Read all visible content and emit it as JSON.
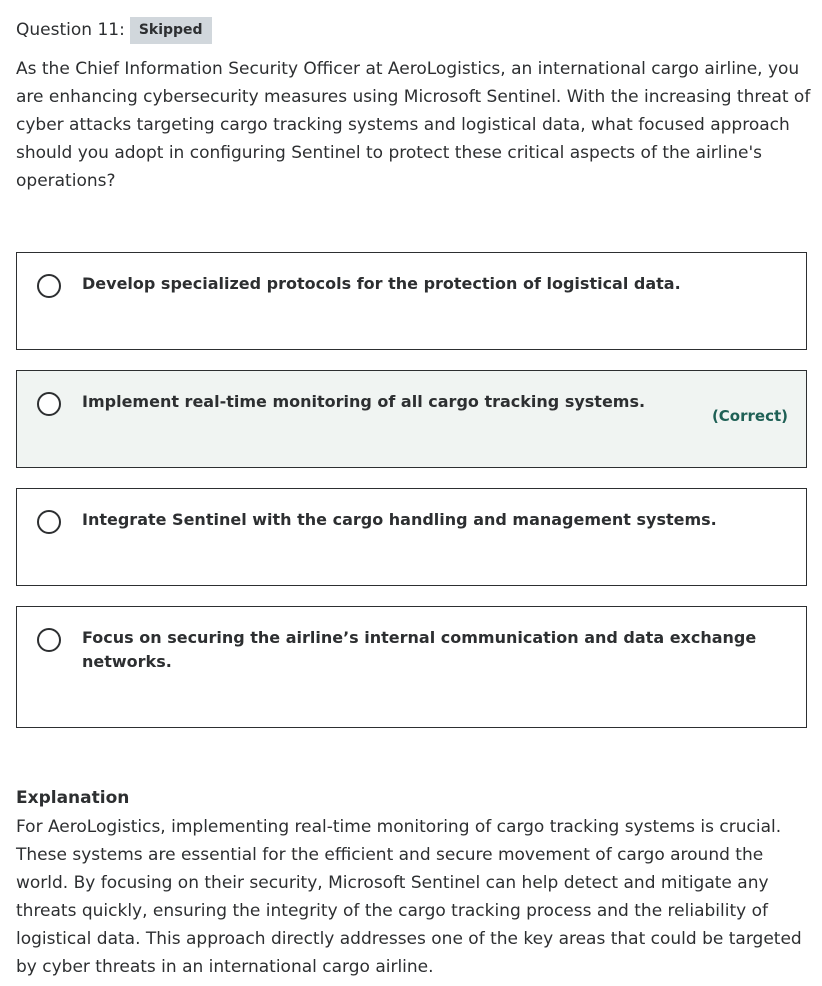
{
  "question": {
    "label": "Question 11:",
    "status_badge": "Skipped",
    "text": "As the Chief Information Security Officer at AeroLogistics, an international cargo airline, you are enhancing cybersecurity measures using Microsoft Sentinel. With the increasing threat of cyber attacks targeting cargo tracking systems and logistical data, what focused approach should you adopt in configuring Sentinel to protect these critical aspects of the airline's operations?"
  },
  "options": [
    {
      "text": "Develop specialized protocols for the protection of logistical data.",
      "selected": false,
      "correct": false
    },
    {
      "text": "Implement real-time monitoring of all cargo tracking systems.",
      "selected": false,
      "correct": true,
      "correct_label": "(Correct)"
    },
    {
      "text": "Integrate Sentinel with the cargo handling and management systems.",
      "selected": false,
      "correct": false
    },
    {
      "text": "Focus on securing the airline’s internal communication and data exchange networks.",
      "selected": false,
      "correct": false
    }
  ],
  "explanation": {
    "title": "Explanation",
    "text": "For AeroLogistics, implementing real-time monitoring of cargo tracking systems is crucial. These systems are essential for the efficient and secure movement of cargo around the world. By focusing on their security, Microsoft Sentinel can help detect and mitigate any threats quickly, ensuring the integrity of the cargo tracking process and the reliability of logistical data. This approach directly addresses one of the key areas that could be targeted by cyber threats in an international cargo airline."
  },
  "colors": {
    "correct_text": "#1e6055",
    "correct_bg": "#f0f4f2",
    "badge_bg": "#d1d7dc",
    "text": "#2d2f31"
  }
}
